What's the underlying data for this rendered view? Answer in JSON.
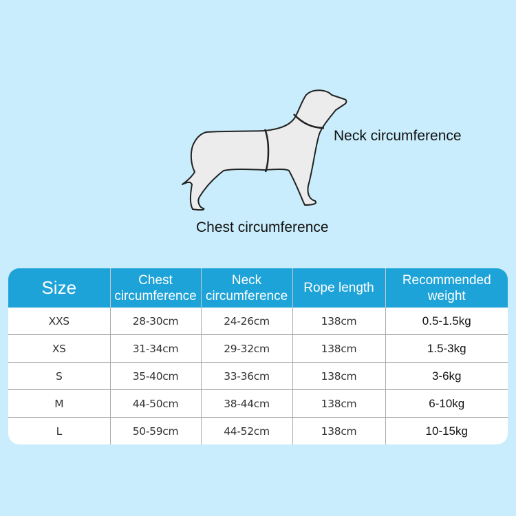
{
  "diagram": {
    "neck_label": "Neck circumference",
    "chest_label": "Chest circumference"
  },
  "table": {
    "headers": {
      "size": "Size",
      "chest": [
        "Chest",
        "circumference"
      ],
      "neck": [
        "Neck",
        "circumference"
      ],
      "rope": "Rope length",
      "weight": [
        "Recommended",
        "weight"
      ]
    },
    "rows": [
      {
        "size": "XXS",
        "chest": "28-30cm",
        "neck": "24-26cm",
        "rope": "138cm",
        "weight": "0.5-1.5kg"
      },
      {
        "size": "XS",
        "chest": "31-34cm",
        "neck": "29-32cm",
        "rope": "138cm",
        "weight": "1.5-3kg"
      },
      {
        "size": "S",
        "chest": "35-40cm",
        "neck": "33-36cm",
        "rope": "138cm",
        "weight": "3-6kg"
      },
      {
        "size": "M",
        "chest": "44-50cm",
        "neck": "38-44cm",
        "rope": "138cm",
        "weight": "6-10kg"
      },
      {
        "size": "L",
        "chest": "50-59cm",
        "neck": "44-52cm",
        "rope": "138cm",
        "weight": "10-15kg"
      }
    ]
  },
  "colors": {
    "background": "#c9edfc",
    "header": "#1ea3d8"
  }
}
